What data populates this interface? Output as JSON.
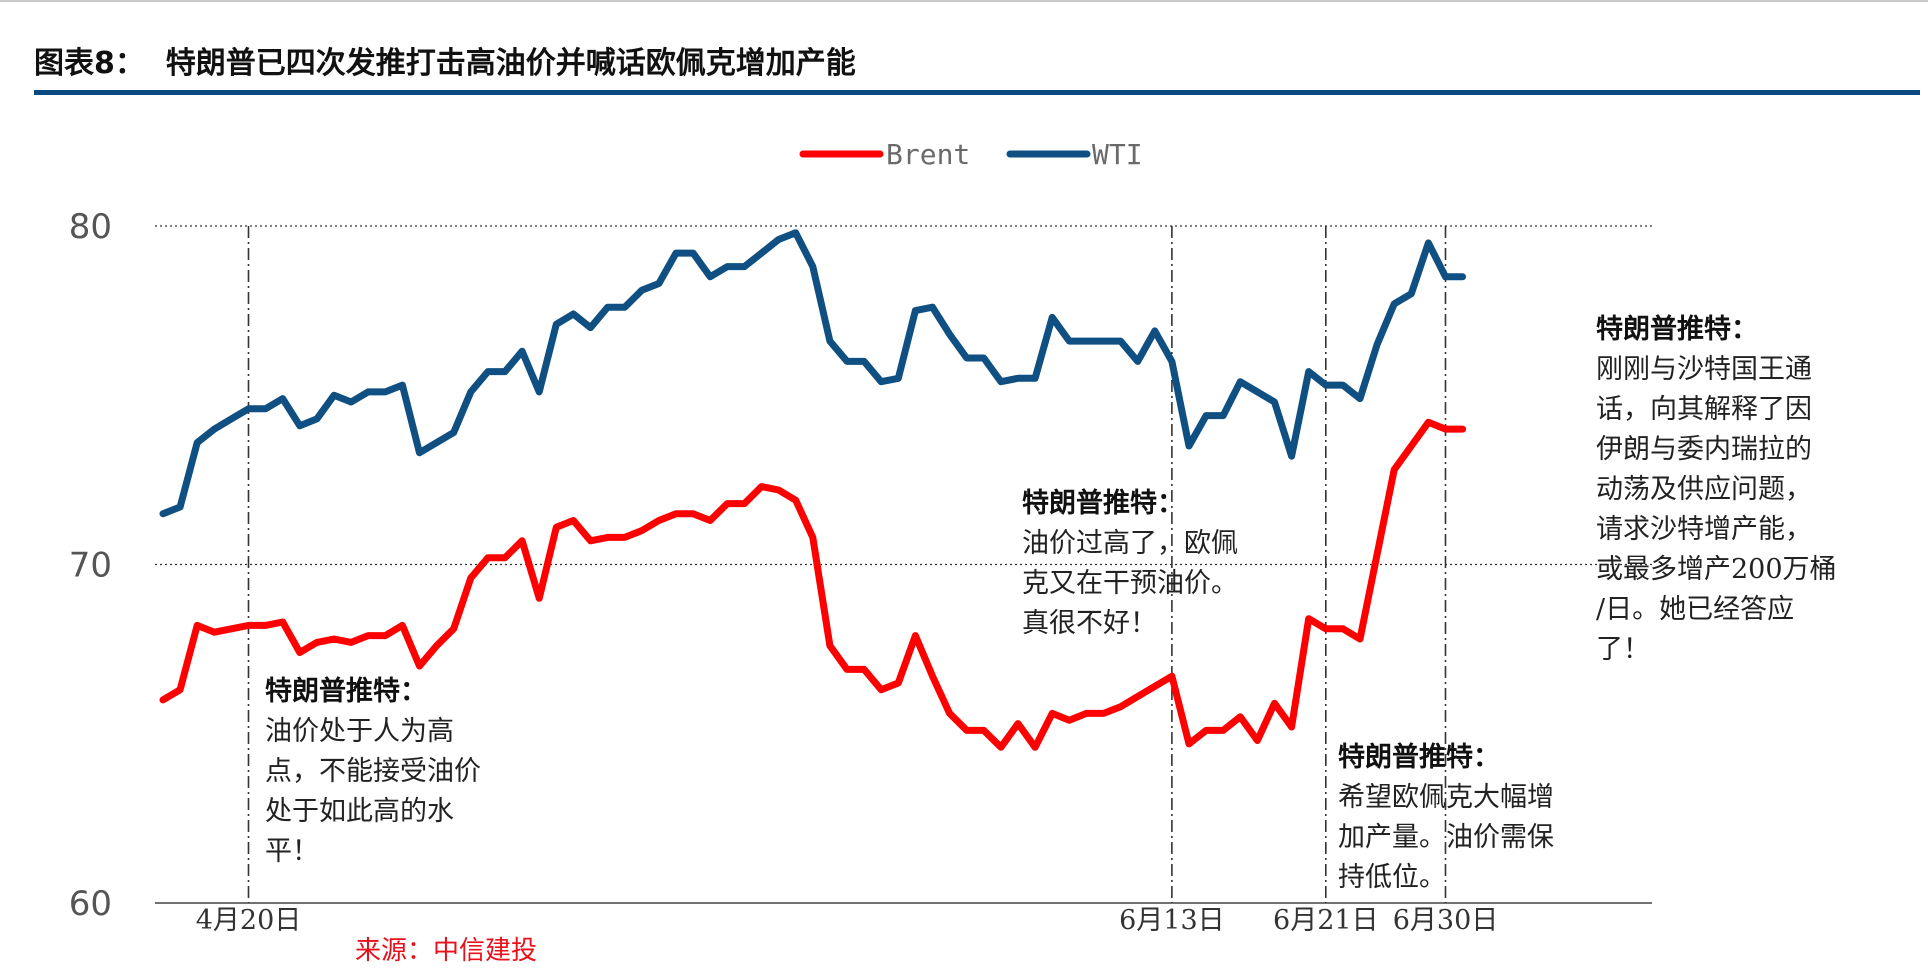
{
  "header": {
    "title": "图表8：  特朗普已四次发推打击高油价并喊话欧佩克增加产能"
  },
  "source": "来源：中信建投",
  "colors": {
    "brent": "#ff0000",
    "wti": "#0f4f82",
    "title_rule": "#0b4a80",
    "source": "#e8101a"
  },
  "chart_data": {
    "type": "line",
    "ylim": [
      60,
      80
    ],
    "yticks": [
      60,
      70,
      80
    ],
    "grid": "dotted horizontal gridlines at 70 and 80",
    "legend_position": "top-center",
    "x_count": 85,
    "xticks": [
      {
        "index": 5,
        "label": "4月20日"
      },
      {
        "index": 59,
        "label": "6月13日"
      },
      {
        "index": 68,
        "label": "6月21日"
      },
      {
        "index": 75,
        "label": "6月30日"
      }
    ],
    "event_lines": [
      5,
      59,
      68,
      75
    ],
    "series": [
      {
        "name": "Brent",
        "values": [
          66.0,
          66.3,
          68.2,
          68.0,
          68.1,
          68.2,
          68.2,
          68.3,
          67.4,
          67.7,
          67.8,
          67.7,
          67.9,
          67.9,
          68.2,
          67.0,
          67.6,
          68.1,
          69.6,
          70.2,
          70.2,
          70.7,
          69.0,
          71.1,
          71.3,
          70.7,
          70.8,
          70.8,
          71.0,
          71.3,
          71.5,
          71.5,
          71.3,
          71.8,
          71.8,
          72.3,
          72.2,
          71.9,
          70.8,
          67.6,
          66.9,
          66.9,
          66.3,
          66.5,
          67.9,
          66.7,
          65.6,
          65.1,
          65.1,
          64.6,
          65.3,
          64.6,
          65.6,
          65.4,
          65.6,
          65.6,
          65.8,
          66.1,
          66.4,
          66.7,
          64.7,
          65.1,
          65.1,
          65.5,
          64.8,
          65.9,
          65.2,
          68.4,
          68.1,
          68.1,
          67.8,
          70.3,
          72.8,
          73.5,
          74.2,
          74.0,
          74.0
        ],
        "x_start": 0
      },
      {
        "name": "WTI",
        "values": [
          71.5,
          71.7,
          73.6,
          74.0,
          74.3,
          74.6,
          74.6,
          74.9,
          74.1,
          74.3,
          75.0,
          74.8,
          75.1,
          75.1,
          75.3,
          73.3,
          73.6,
          73.9,
          75.1,
          75.7,
          75.7,
          76.3,
          75.1,
          77.1,
          77.4,
          77.0,
          77.6,
          77.6,
          78.1,
          78.3,
          79.2,
          79.2,
          78.5,
          78.8,
          78.8,
          79.2,
          79.6,
          79.8,
          78.8,
          76.6,
          76.0,
          76.0,
          75.4,
          75.5,
          77.5,
          77.6,
          76.8,
          76.1,
          76.1,
          75.4,
          75.5,
          75.5,
          77.3,
          76.6,
          76.6,
          76.6,
          76.6,
          76.0,
          76.9,
          76.0,
          73.5,
          74.4,
          74.4,
          75.4,
          75.1,
          74.8,
          73.2,
          75.7,
          75.3,
          75.3,
          74.9,
          76.5,
          77.7,
          78.0,
          79.5,
          78.5,
          78.5
        ],
        "x_start": 0
      }
    ],
    "annotations": [
      {
        "title": "特朗普推特：",
        "lines": [
          "油价处于人为高",
          "点，不能接受油价",
          "处于如此高的水",
          "平！"
        ]
      },
      {
        "title": "特朗普推特：",
        "lines": [
          "油价过高了，欧佩",
          "克又在干预油价。",
          "真很不好！"
        ]
      },
      {
        "title": "特朗普推特：",
        "lines": [
          "希望欧佩克大幅增",
          "加产量。油价需保",
          "持低位。"
        ]
      },
      {
        "title": "特朗普推特：",
        "lines": [
          "刚刚与沙特国王通",
          "话，向其解释了因",
          "伊朗与委内瑞拉的",
          "动荡及供应问题，",
          "请求沙特增产能，",
          "或最多增产200万桶",
          "/日。她已经答应",
          "了！"
        ]
      }
    ]
  }
}
